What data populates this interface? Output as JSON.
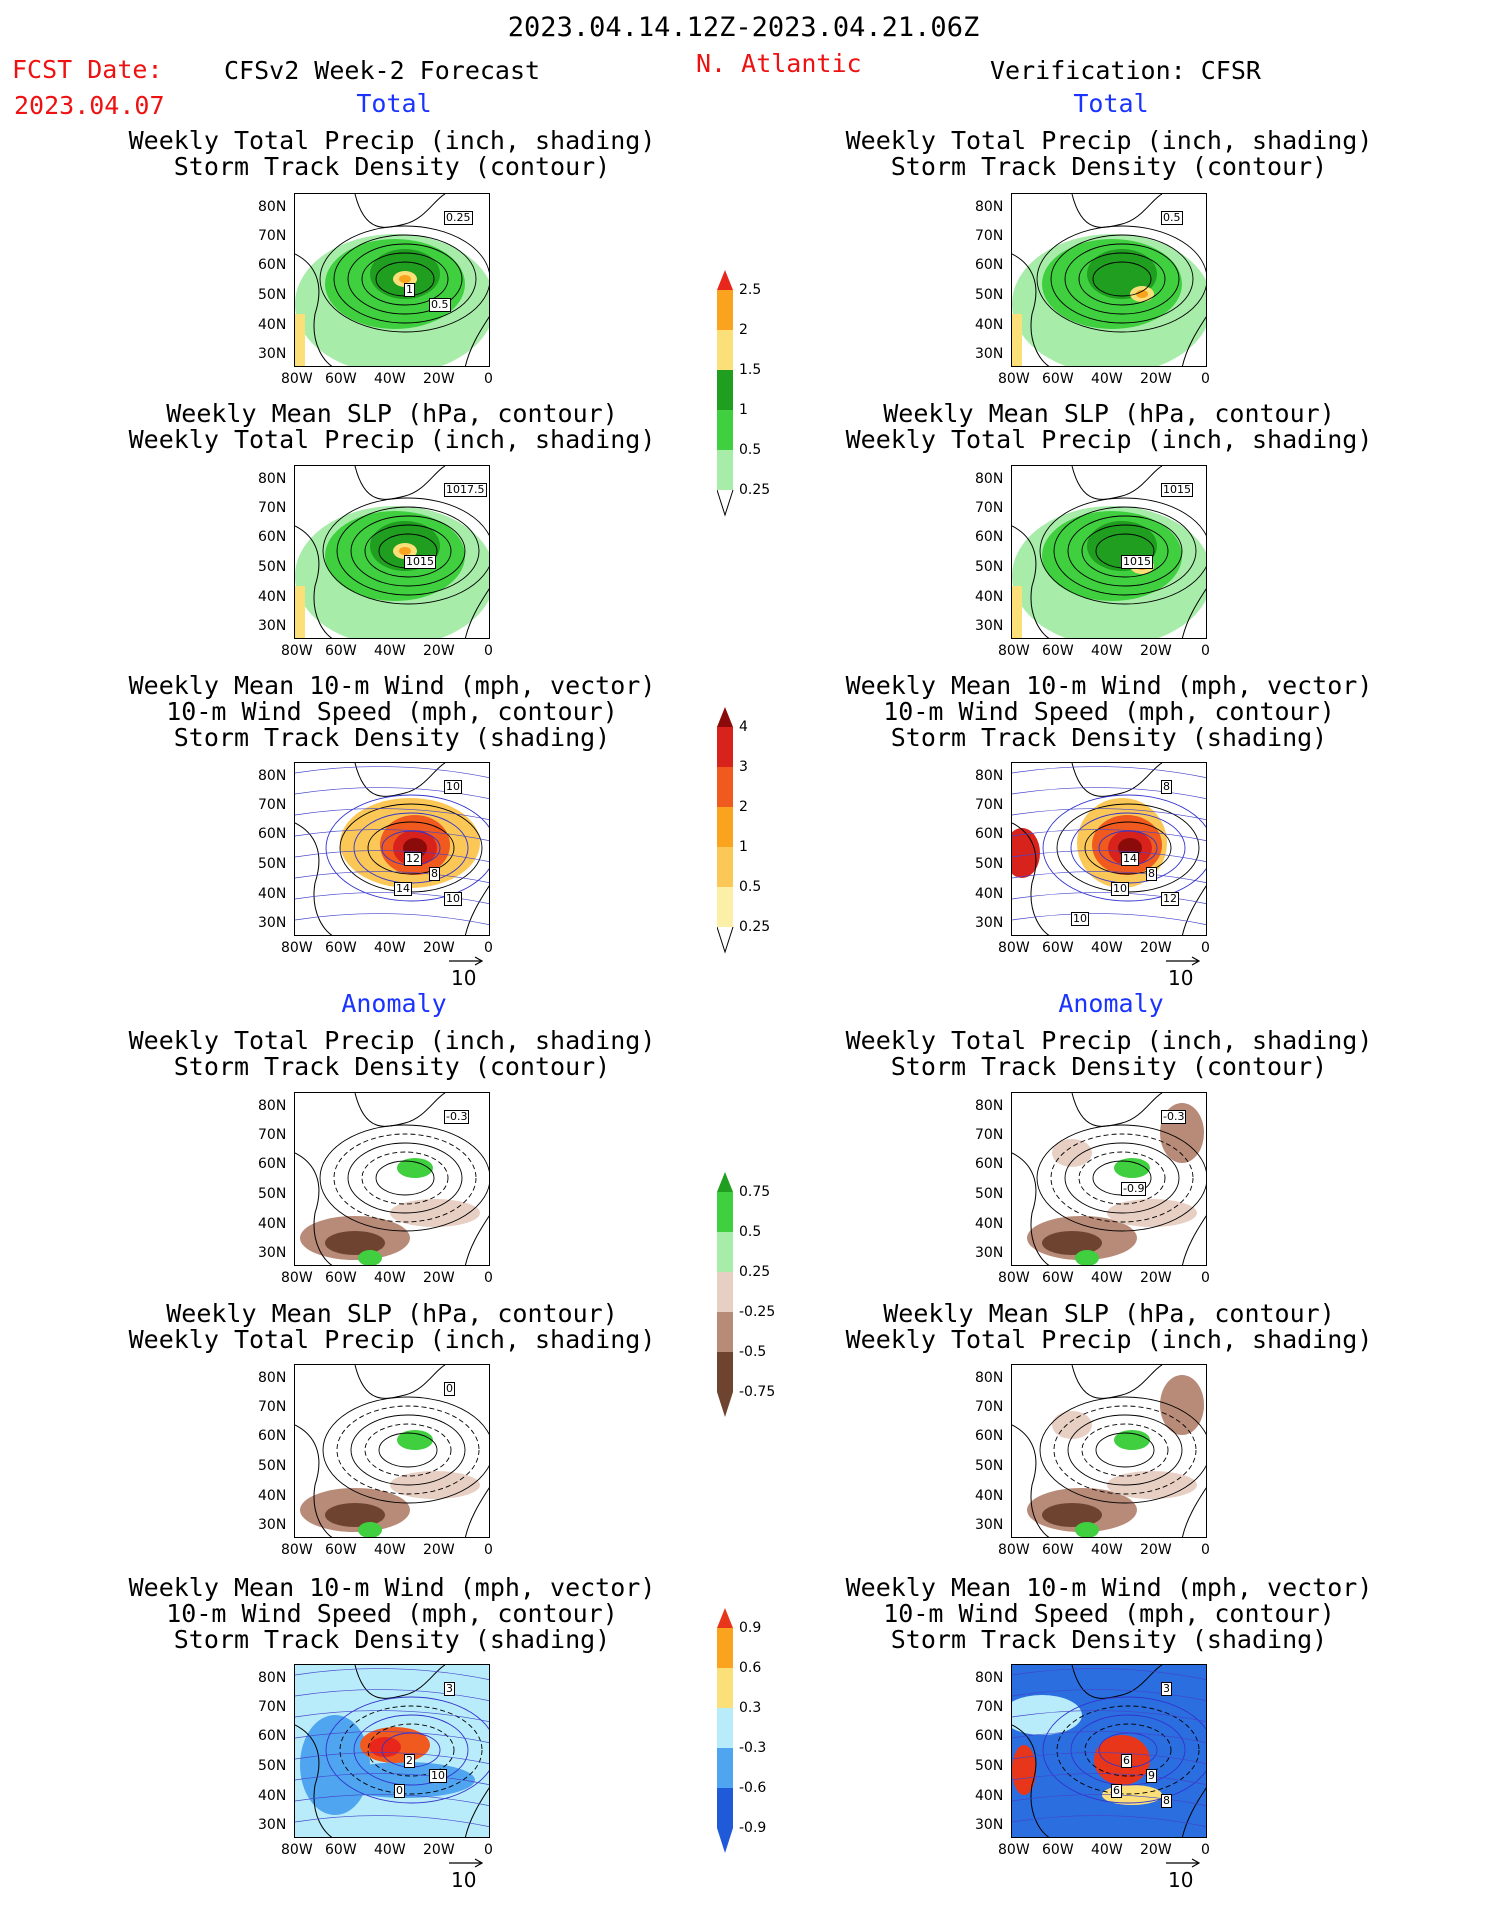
{
  "header": {
    "period": "2023.04.14.12Z-2023.04.21.06Z",
    "fcst_label": "FCST Date:",
    "fcst_date": "2023.04.07",
    "left_title": "CFSv2 Week-2 Forecast",
    "region": "N. Atlantic",
    "right_title": "Verification: CFSR"
  },
  "sections": {
    "total": "Total",
    "anomaly": "Anomaly"
  },
  "titles": {
    "precip_track": [
      "Weekly Total Precip (inch, shading)",
      "Storm Track Density (contour)"
    ],
    "slp_precip": [
      "Weekly Mean SLP (hPa, contour)",
      "Weekly Total Precip (inch, shading)"
    ],
    "wind_track": [
      "Weekly Mean 10-m Wind (mph, vector)",
      "10-m Wind Speed (mph, contour)",
      "Storm Track Density (shading)"
    ]
  },
  "axes": {
    "lat": [
      "80N",
      "70N",
      "60N",
      "50N",
      "40N",
      "30N"
    ],
    "lon": [
      "80W",
      "60W",
      "40W",
      "20W",
      "0"
    ]
  },
  "vector_ref": "10",
  "colorbars": {
    "precip_total": {
      "labels": [
        "2.5",
        "2",
        "1.5",
        "1",
        "0.5",
        "0.25"
      ],
      "colors": [
        "#e8261b",
        "#f9a31f",
        "#fbe07a",
        "#1f9e1f",
        "#3fcf3f",
        "#a8ecaa"
      ]
    },
    "density_total": {
      "labels": [
        "4",
        "3",
        "2",
        "1",
        "0.5",
        "0.25"
      ],
      "colors": [
        "#8b0a0a",
        "#d8231c",
        "#f05a1e",
        "#f9a31f",
        "#fbc757",
        "#fcf0a8"
      ]
    },
    "precip_anom": {
      "labels": [
        "0.75",
        "0.5",
        "0.25",
        "-0.25",
        "-0.5",
        "-0.75"
      ],
      "colors": [
        "#1f9e1f",
        "#3fcf3f",
        "#a8ecaa",
        "#e8cfc4",
        "#b88a78",
        "#6e4431"
      ]
    },
    "density_anom": {
      "labels": [
        "0.9",
        "0.6",
        "0.3",
        "-0.3",
        "-0.6",
        "-0.9"
      ],
      "colors": [
        "#e8361b",
        "#f9a31f",
        "#fbe07a",
        "#b8ecfa",
        "#4fa5ef",
        "#1f5ad8"
      ]
    }
  },
  "panel_labels": {
    "f_pt": [
      "0.25",
      "1",
      "0.5"
    ],
    "v_pt": [
      "0.5"
    ],
    "f_sp": [
      "1017.5",
      "1015"
    ],
    "v_sp": [
      "1015",
      "1015"
    ],
    "f_wt": [
      "10",
      "12",
      "8",
      "14",
      "10"
    ],
    "v_wt": [
      "8",
      "14",
      "8",
      "10",
      "12",
      "10"
    ],
    "f_pa": [
      "-0.3"
    ],
    "v_pa": [
      "-0.3",
      "-0.9"
    ],
    "f_sa": [
      "0"
    ],
    "f_wa": [
      "3",
      "2",
      "10",
      "0"
    ],
    "v_wa": [
      "3",
      "6",
      "9",
      "6",
      "8"
    ]
  }
}
